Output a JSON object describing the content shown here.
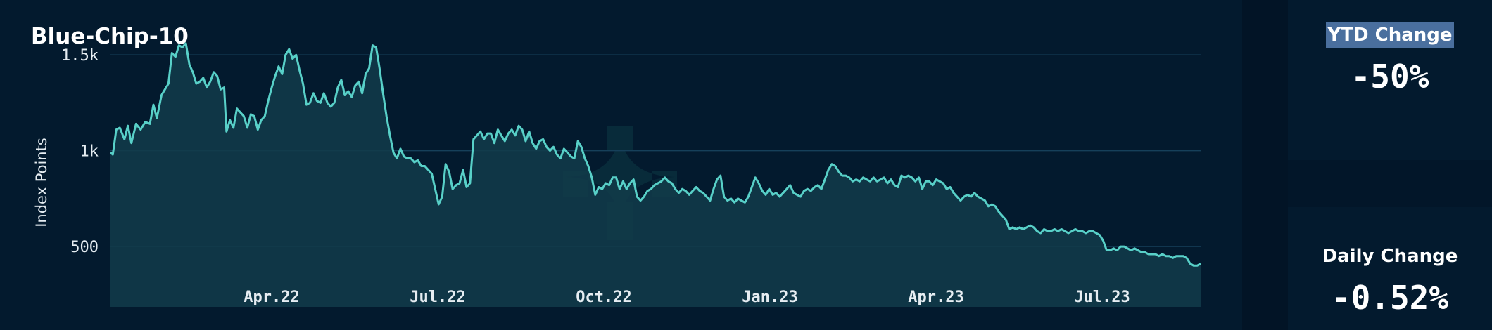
{
  "chart_data": {
    "type": "area",
    "title": "Blue-Chip-10",
    "ylabel": "Index Points",
    "xlabel": "",
    "y_ticks": [
      "500",
      "1k",
      "1.5k"
    ],
    "y_tick_values": [
      500,
      1000,
      1500
    ],
    "ylim": [
      185,
      1640
    ],
    "x_ticks": [
      "Apr.22",
      "Jul.22",
      "Oct.22",
      "Jan.23",
      "Apr.23",
      "Jul.23"
    ],
    "grid": true,
    "line_color": "#58d0c8",
    "fill_color": "#123c4a",
    "series": [
      {
        "points": [
          [
            0,
            990
          ],
          [
            2,
            980
          ],
          [
            5,
            1110
          ],
          [
            8,
            1120
          ],
          [
            12,
            1060
          ],
          [
            15,
            1130
          ],
          [
            18,
            1040
          ],
          [
            22,
            1140
          ],
          [
            26,
            1110
          ],
          [
            30,
            1150
          ],
          [
            34,
            1140
          ],
          [
            37,
            1240
          ],
          [
            40,
            1170
          ],
          [
            44,
            1290
          ],
          [
            47,
            1320
          ],
          [
            50,
            1350
          ],
          [
            53,
            1510
          ],
          [
            56,
            1490
          ],
          [
            59,
            1550
          ],
          [
            62,
            1540
          ],
          [
            65,
            1560
          ],
          [
            68,
            1450
          ],
          [
            71,
            1410
          ],
          [
            74,
            1350
          ],
          [
            77,
            1360
          ],
          [
            80,
            1380
          ],
          [
            83,
            1330
          ],
          [
            86,
            1360
          ],
          [
            89,
            1410
          ],
          [
            92,
            1390
          ],
          [
            95,
            1320
          ],
          [
            98,
            1330
          ],
          [
            100,
            1100
          ],
          [
            103,
            1160
          ],
          [
            106,
            1120
          ],
          [
            109,
            1220
          ],
          [
            112,
            1200
          ],
          [
            115,
            1180
          ],
          [
            118,
            1120
          ],
          [
            121,
            1190
          ],
          [
            124,
            1180
          ],
          [
            127,
            1110
          ],
          [
            130,
            1160
          ],
          [
            133,
            1180
          ],
          [
            136,
            1260
          ],
          [
            139,
            1330
          ],
          [
            142,
            1390
          ],
          [
            145,
            1440
          ],
          [
            148,
            1400
          ],
          [
            151,
            1500
          ],
          [
            154,
            1530
          ],
          [
            157,
            1480
          ],
          [
            160,
            1500
          ],
          [
            163,
            1420
          ],
          [
            166,
            1350
          ],
          [
            169,
            1240
          ],
          [
            172,
            1250
          ],
          [
            175,
            1300
          ],
          [
            178,
            1260
          ],
          [
            181,
            1250
          ],
          [
            184,
            1300
          ],
          [
            187,
            1250
          ],
          [
            190,
            1230
          ],
          [
            193,
            1250
          ],
          [
            196,
            1330
          ],
          [
            199,
            1370
          ],
          [
            202,
            1290
          ],
          [
            205,
            1310
          ],
          [
            208,
            1280
          ],
          [
            211,
            1340
          ],
          [
            214,
            1360
          ],
          [
            217,
            1300
          ],
          [
            220,
            1400
          ],
          [
            223,
            1430
          ],
          [
            226,
            1550
          ],
          [
            229,
            1540
          ],
          [
            232,
            1430
          ],
          [
            235,
            1300
          ],
          [
            238,
            1180
          ],
          [
            241,
            1080
          ],
          [
            244,
            990
          ],
          [
            247,
            960
          ],
          [
            250,
            1010
          ],
          [
            253,
            970
          ],
          [
            256,
            960
          ],
          [
            259,
            960
          ],
          [
            262,
            940
          ],
          [
            265,
            950
          ],
          [
            268,
            920
          ],
          [
            271,
            920
          ],
          [
            274,
            900
          ],
          [
            277,
            880
          ],
          [
            280,
            800
          ],
          [
            283,
            720
          ],
          [
            286,
            760
          ],
          [
            289,
            930
          ],
          [
            292,
            890
          ],
          [
            295,
            800
          ],
          [
            298,
            820
          ],
          [
            301,
            830
          ],
          [
            304,
            900
          ],
          [
            307,
            810
          ],
          [
            310,
            830
          ],
          [
            313,
            1060
          ],
          [
            316,
            1080
          ],
          [
            319,
            1100
          ],
          [
            322,
            1060
          ],
          [
            325,
            1090
          ],
          [
            328,
            1090
          ],
          [
            331,
            1040
          ],
          [
            334,
            1110
          ],
          [
            337,
            1080
          ],
          [
            340,
            1050
          ],
          [
            343,
            1090
          ],
          [
            346,
            1110
          ],
          [
            349,
            1080
          ],
          [
            352,
            1130
          ],
          [
            355,
            1110
          ],
          [
            358,
            1050
          ],
          [
            361,
            1100
          ],
          [
            364,
            1040
          ],
          [
            367,
            1010
          ],
          [
            370,
            1050
          ],
          [
            373,
            1060
          ],
          [
            376,
            1020
          ],
          [
            379,
            1000
          ],
          [
            382,
            1020
          ],
          [
            385,
            980
          ],
          [
            388,
            960
          ],
          [
            391,
            1010
          ],
          [
            394,
            990
          ],
          [
            397,
            970
          ],
          [
            400,
            960
          ],
          [
            403,
            1050
          ],
          [
            406,
            1020
          ],
          [
            409,
            960
          ],
          [
            412,
            920
          ],
          [
            415,
            860
          ],
          [
            418,
            770
          ],
          [
            421,
            810
          ],
          [
            424,
            800
          ],
          [
            427,
            830
          ],
          [
            430,
            820
          ],
          [
            433,
            860
          ],
          [
            436,
            860
          ],
          [
            439,
            800
          ],
          [
            442,
            840
          ],
          [
            445,
            800
          ],
          [
            448,
            830
          ],
          [
            451,
            850
          ],
          [
            454,
            760
          ],
          [
            457,
            740
          ],
          [
            460,
            760
          ],
          [
            463,
            790
          ],
          [
            466,
            800
          ],
          [
            469,
            820
          ],
          [
            472,
            830
          ],
          [
            475,
            840
          ],
          [
            478,
            860
          ],
          [
            481,
            840
          ],
          [
            484,
            830
          ],
          [
            487,
            800
          ],
          [
            490,
            780
          ],
          [
            493,
            800
          ],
          [
            496,
            790
          ],
          [
            499,
            770
          ],
          [
            502,
            790
          ],
          [
            505,
            810
          ],
          [
            508,
            790
          ],
          [
            511,
            780
          ],
          [
            514,
            760
          ],
          [
            517,
            740
          ],
          [
            520,
            800
          ],
          [
            523,
            850
          ],
          [
            526,
            870
          ],
          [
            529,
            760
          ],
          [
            532,
            740
          ],
          [
            535,
            750
          ],
          [
            538,
            730
          ],
          [
            541,
            750
          ],
          [
            544,
            740
          ],
          [
            547,
            730
          ],
          [
            550,
            760
          ],
          [
            553,
            810
          ],
          [
            556,
            860
          ],
          [
            559,
            830
          ],
          [
            562,
            790
          ],
          [
            565,
            770
          ],
          [
            568,
            800
          ],
          [
            571,
            770
          ],
          [
            574,
            780
          ],
          [
            577,
            760
          ],
          [
            580,
            780
          ],
          [
            583,
            800
          ],
          [
            586,
            820
          ],
          [
            589,
            780
          ],
          [
            592,
            770
          ],
          [
            595,
            760
          ],
          [
            598,
            790
          ],
          [
            601,
            800
          ],
          [
            604,
            790
          ],
          [
            607,
            810
          ],
          [
            610,
            820
          ],
          [
            613,
            800
          ],
          [
            616,
            850
          ],
          [
            619,
            900
          ],
          [
            622,
            930
          ],
          [
            625,
            920
          ],
          [
            628,
            890
          ],
          [
            631,
            870
          ],
          [
            634,
            870
          ],
          [
            637,
            860
          ],
          [
            640,
            840
          ],
          [
            643,
            850
          ],
          [
            646,
            840
          ],
          [
            649,
            860
          ],
          [
            652,
            850
          ],
          [
            655,
            840
          ],
          [
            658,
            860
          ],
          [
            661,
            840
          ],
          [
            664,
            850
          ],
          [
            667,
            860
          ],
          [
            670,
            830
          ],
          [
            673,
            850
          ],
          [
            676,
            820
          ],
          [
            679,
            810
          ],
          [
            682,
            870
          ],
          [
            685,
            860
          ],
          [
            688,
            870
          ],
          [
            691,
            860
          ],
          [
            694,
            840
          ],
          [
            697,
            860
          ],
          [
            700,
            800
          ],
          [
            703,
            840
          ],
          [
            706,
            840
          ],
          [
            709,
            820
          ],
          [
            712,
            850
          ],
          [
            715,
            840
          ],
          [
            718,
            830
          ],
          [
            721,
            800
          ],
          [
            724,
            810
          ],
          [
            727,
            780
          ],
          [
            730,
            760
          ],
          [
            733,
            740
          ],
          [
            736,
            760
          ],
          [
            739,
            770
          ],
          [
            742,
            760
          ],
          [
            745,
            780
          ],
          [
            748,
            760
          ],
          [
            751,
            750
          ],
          [
            754,
            740
          ],
          [
            757,
            710
          ],
          [
            760,
            720
          ],
          [
            763,
            710
          ],
          [
            766,
            680
          ],
          [
            769,
            660
          ],
          [
            772,
            640
          ],
          [
            775,
            590
          ],
          [
            778,
            600
          ],
          [
            781,
            590
          ],
          [
            784,
            600
          ],
          [
            787,
            590
          ],
          [
            790,
            600
          ],
          [
            793,
            610
          ],
          [
            796,
            600
          ],
          [
            799,
            580
          ],
          [
            802,
            570
          ],
          [
            805,
            590
          ],
          [
            808,
            580
          ],
          [
            811,
            580
          ],
          [
            814,
            590
          ],
          [
            817,
            580
          ],
          [
            820,
            590
          ],
          [
            823,
            580
          ],
          [
            826,
            570
          ],
          [
            829,
            580
          ],
          [
            832,
            590
          ],
          [
            835,
            580
          ],
          [
            838,
            580
          ],
          [
            841,
            570
          ],
          [
            844,
            580
          ],
          [
            847,
            580
          ],
          [
            850,
            570
          ],
          [
            853,
            560
          ],
          [
            856,
            530
          ],
          [
            859,
            480
          ],
          [
            862,
            480
          ],
          [
            865,
            490
          ],
          [
            868,
            480
          ],
          [
            871,
            500
          ],
          [
            874,
            500
          ],
          [
            877,
            490
          ],
          [
            880,
            480
          ],
          [
            883,
            490
          ],
          [
            886,
            480
          ],
          [
            889,
            470
          ],
          [
            892,
            470
          ],
          [
            895,
            460
          ],
          [
            898,
            460
          ],
          [
            901,
            460
          ],
          [
            904,
            450
          ],
          [
            907,
            460
          ],
          [
            910,
            450
          ],
          [
            913,
            450
          ],
          [
            916,
            440
          ],
          [
            919,
            450
          ],
          [
            922,
            450
          ],
          [
            925,
            450
          ],
          [
            928,
            440
          ],
          [
            931,
            410
          ],
          [
            934,
            400
          ],
          [
            937,
            400
          ],
          [
            940,
            410
          ]
        ]
      }
    ]
  },
  "cards": {
    "ytd": {
      "label": "YTD Change",
      "value": "-50%"
    },
    "daily": {
      "label": "Daily Change",
      "value": "-0.52%"
    }
  }
}
